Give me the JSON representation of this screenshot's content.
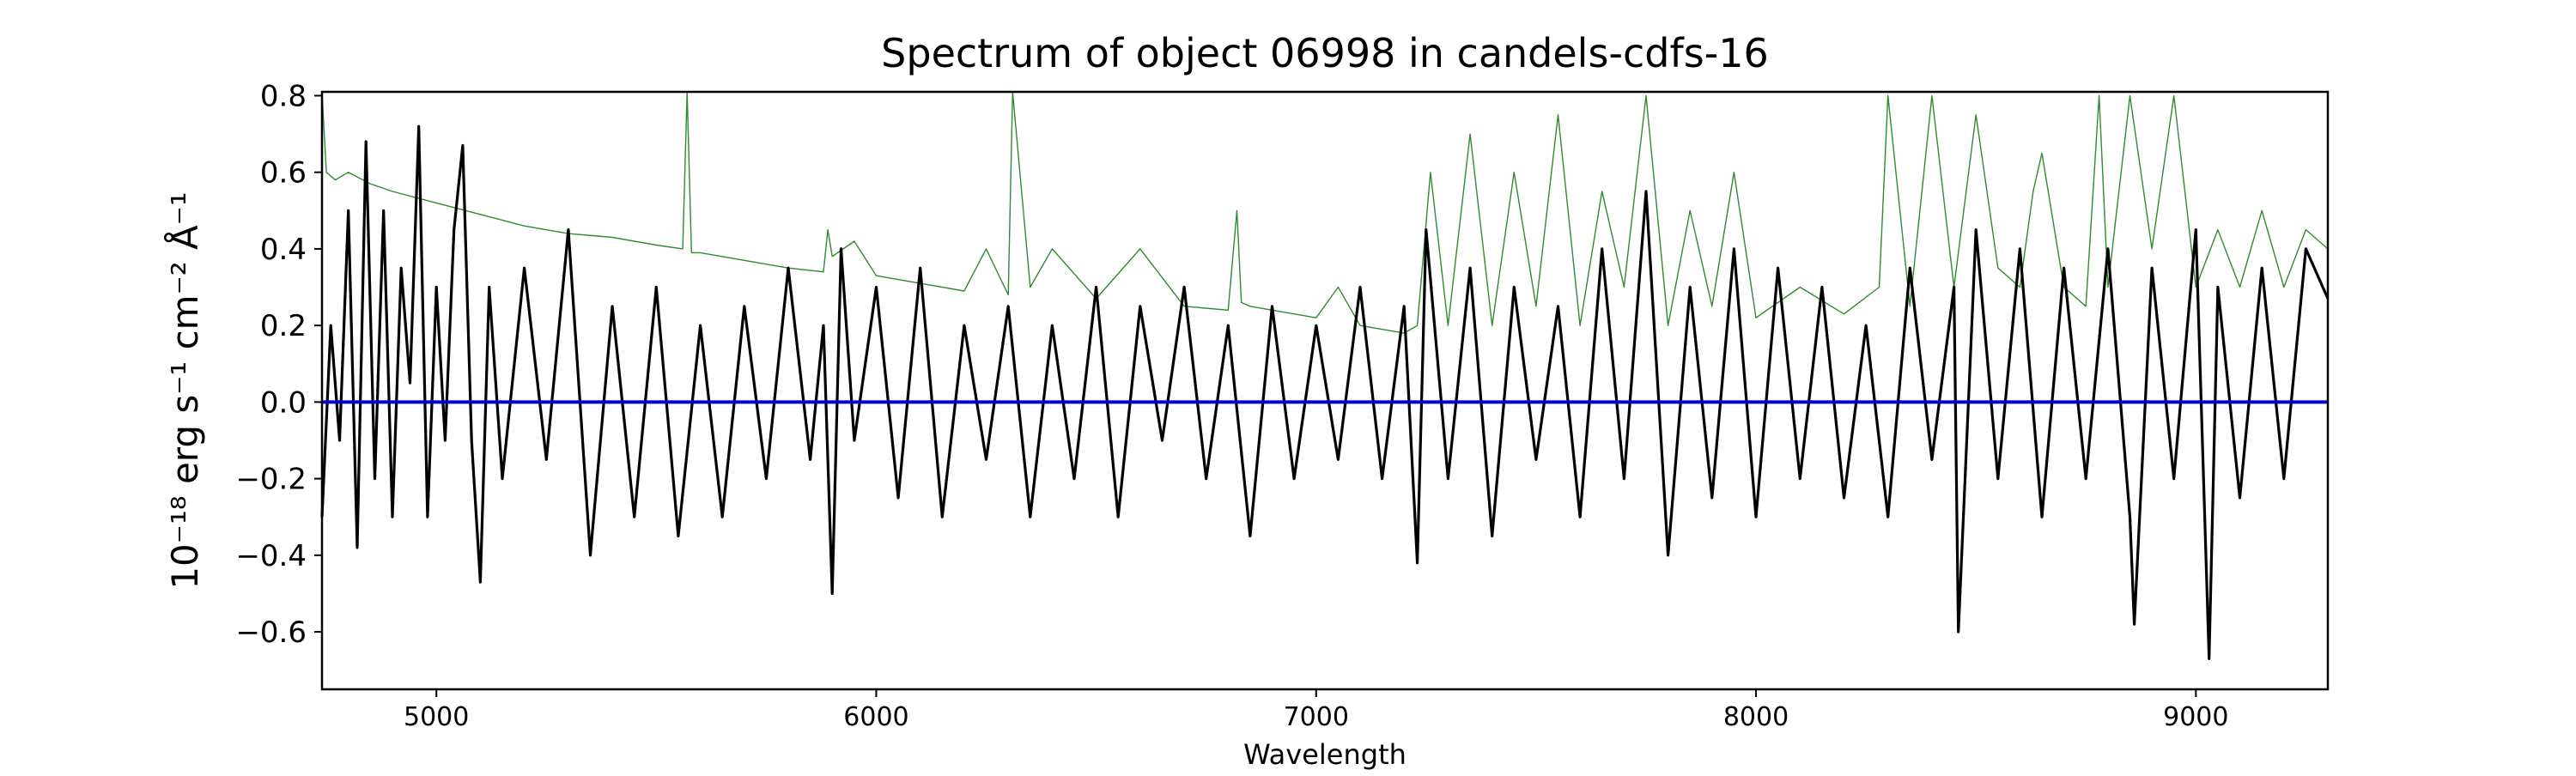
{
  "chart_data": {
    "type": "line",
    "title": "Spectrum of object 06998 in candels-cdfs-16",
    "xlabel": "Wavelength",
    "ylabel": "10⁻¹⁸ erg s⁻¹ cm⁻² Å⁻¹",
    "xlim": [
      4740,
      9300
    ],
    "ylim": [
      -0.75,
      0.81
    ],
    "x_ticks": [
      5000,
      6000,
      7000,
      8000,
      9000
    ],
    "x_tick_labels": [
      "5000",
      "6000",
      "7000",
      "8000",
      "9000"
    ],
    "y_ticks": [
      -0.6,
      -0.4,
      -0.2,
      0.0,
      0.2,
      0.4,
      0.6,
      0.8
    ],
    "y_tick_labels": [
      "−0.6",
      "−0.4",
      "−0.2",
      "0.0",
      "0.2",
      "0.4",
      "0.6",
      "0.8"
    ],
    "grid": false,
    "legend": "none",
    "colors": {
      "flux": "#000000",
      "contamination": "#2e8b2e",
      "zero": "#0000cc"
    },
    "series": [
      {
        "key": "flux",
        "x": [
          4740,
          4760,
          4780,
          4800,
          4820,
          4840,
          4860,
          4880,
          4900,
          4920,
          4940,
          4960,
          4980,
          5000,
          5020,
          5040,
          5060,
          5080,
          5100,
          5120,
          5150,
          5200,
          5250,
          5300,
          5350,
          5400,
          5450,
          5500,
          5550,
          5600,
          5650,
          5700,
          5750,
          5800,
          5850,
          5880,
          5900,
          5920,
          5950,
          6000,
          6050,
          6100,
          6150,
          6200,
          6250,
          6300,
          6350,
          6400,
          6450,
          6500,
          6550,
          6600,
          6650,
          6700,
          6750,
          6800,
          6850,
          6900,
          6950,
          7000,
          7050,
          7100,
          7150,
          7200,
          7230,
          7250,
          7300,
          7350,
          7400,
          7450,
          7500,
          7550,
          7600,
          7650,
          7700,
          7750,
          7800,
          7850,
          7900,
          7950,
          8000,
          8050,
          8100,
          8150,
          8200,
          8250,
          8300,
          8350,
          8400,
          8450,
          8460,
          8500,
          8550,
          8600,
          8650,
          8700,
          8750,
          8800,
          8850,
          8860,
          8900,
          8950,
          9000,
          9030,
          9050,
          9100,
          9150,
          9200,
          9250,
          9300
        ],
        "y": [
          -0.3,
          0.2,
          -0.1,
          0.5,
          -0.38,
          0.68,
          -0.2,
          0.5,
          -0.3,
          0.35,
          0.05,
          0.72,
          -0.3,
          0.3,
          -0.1,
          0.45,
          0.67,
          -0.1,
          -0.47,
          0.3,
          -0.2,
          0.35,
          -0.15,
          0.45,
          -0.4,
          0.25,
          -0.3,
          0.3,
          -0.35,
          0.2,
          -0.3,
          0.25,
          -0.2,
          0.35,
          -0.15,
          0.2,
          -0.5,
          0.4,
          -0.1,
          0.3,
          -0.25,
          0.35,
          -0.3,
          0.2,
          -0.15,
          0.25,
          -0.3,
          0.2,
          -0.2,
          0.3,
          -0.3,
          0.25,
          -0.1,
          0.3,
          -0.2,
          0.2,
          -0.35,
          0.25,
          -0.2,
          0.2,
          -0.15,
          0.3,
          -0.2,
          0.25,
          -0.42,
          0.45,
          -0.2,
          0.35,
          -0.35,
          0.3,
          -0.15,
          0.25,
          -0.3,
          0.4,
          -0.2,
          0.55,
          -0.4,
          0.3,
          -0.25,
          0.4,
          -0.3,
          0.35,
          -0.2,
          0.3,
          -0.25,
          0.2,
          -0.3,
          0.35,
          -0.15,
          0.3,
          -0.6,
          0.45,
          -0.2,
          0.4,
          -0.3,
          0.35,
          -0.2,
          0.4,
          -0.3,
          -0.58,
          0.35,
          -0.2,
          0.45,
          -0.67,
          0.3,
          -0.25,
          0.35,
          -0.2,
          0.4,
          0.27
        ]
      },
      {
        "key": "contamination",
        "x": [
          4740,
          4750,
          4770,
          4800,
          4850,
          4900,
          5000,
          5100,
          5200,
          5300,
          5400,
          5500,
          5560,
          5570,
          5580,
          5600,
          5700,
          5800,
          5880,
          5890,
          5900,
          5950,
          6000,
          6100,
          6200,
          6250,
          6300,
          6310,
          6350,
          6400,
          6500,
          6600,
          6700,
          6800,
          6820,
          6830,
          6850,
          6900,
          7000,
          7050,
          7100,
          7200,
          7230,
          7260,
          7300,
          7350,
          7400,
          7450,
          7500,
          7550,
          7600,
          7650,
          7700,
          7750,
          7800,
          7850,
          7900,
          7950,
          8000,
          8100,
          8200,
          8280,
          8300,
          8350,
          8400,
          8450,
          8500,
          8550,
          8600,
          8630,
          8650,
          8700,
          8750,
          8780,
          8800,
          8850,
          8900,
          8950,
          9000,
          9050,
          9100,
          9150,
          9200,
          9250,
          9300
        ],
        "y": [
          0.82,
          0.6,
          0.58,
          0.6,
          0.57,
          0.55,
          0.52,
          0.49,
          0.46,
          0.44,
          0.43,
          0.41,
          0.4,
          0.82,
          0.39,
          0.39,
          0.37,
          0.35,
          0.34,
          0.45,
          0.38,
          0.42,
          0.33,
          0.31,
          0.29,
          0.4,
          0.28,
          0.82,
          0.3,
          0.4,
          0.27,
          0.4,
          0.25,
          0.24,
          0.5,
          0.26,
          0.25,
          0.24,
          0.22,
          0.3,
          0.2,
          0.18,
          0.2,
          0.6,
          0.2,
          0.7,
          0.2,
          0.6,
          0.25,
          0.75,
          0.2,
          0.55,
          0.3,
          0.8,
          0.2,
          0.5,
          0.25,
          0.6,
          0.22,
          0.3,
          0.23,
          0.3,
          0.8,
          0.25,
          0.8,
          0.3,
          0.75,
          0.35,
          0.3,
          0.55,
          0.65,
          0.3,
          0.25,
          0.8,
          0.3,
          0.8,
          0.4,
          0.8,
          0.3,
          0.45,
          0.3,
          0.5,
          0.3,
          0.45,
          0.4
        ]
      }
    ],
    "reference_lines": [
      {
        "key": "zero",
        "y": 0.0
      }
    ]
  }
}
